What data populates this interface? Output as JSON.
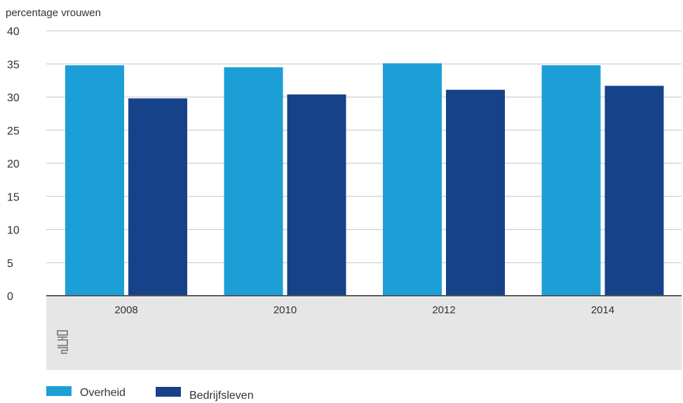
{
  "chart_data": {
    "type": "bar",
    "ylabel": "percentage vrouwen",
    "xlabel": "",
    "title": "",
    "categories": [
      "2008",
      "2010",
      "2012",
      "2014"
    ],
    "series": [
      {
        "name": "Overheid",
        "values": [
          34.8,
          34.5,
          35.1,
          34.8
        ],
        "color": "#1b9fd6"
      },
      {
        "name": "Bedrijfsleven",
        "values": [
          29.8,
          30.4,
          31.1,
          31.7
        ],
        "color": "#16428a"
      }
    ],
    "ylim": [
      0,
      40
    ],
    "yticks": [
      0,
      5,
      10,
      15,
      20,
      25,
      30,
      35,
      40
    ],
    "grid": true,
    "legend_position": "bottom-left",
    "logo": "cbs"
  }
}
